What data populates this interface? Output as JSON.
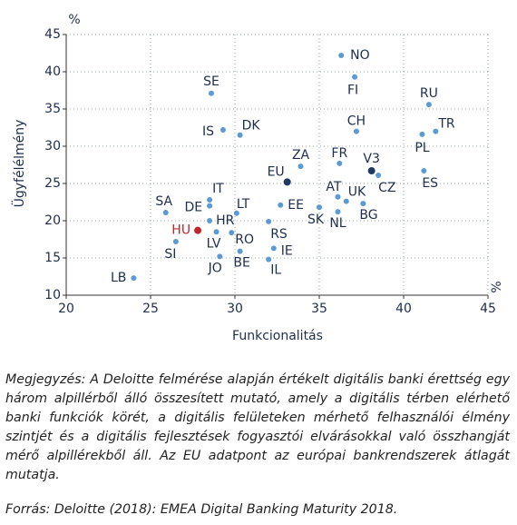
{
  "chart_data": {
    "type": "scatter",
    "y_label": "Ügyfélélmény",
    "x_label": "Funkcionalitás",
    "y_unit": "%",
    "x_unit": "%",
    "labels": [
      "NO",
      "FI",
      "SE",
      "RU",
      "IS",
      "DK",
      "CH",
      "TR",
      "PL",
      "ZA",
      "FR",
      "V3",
      "CZ",
      "ES",
      "EU",
      "AT",
      "UK",
      "SK",
      "NL",
      "BG",
      "EE",
      "SA",
      "IT",
      "DE",
      "LT",
      "HR",
      "HU",
      "RO",
      "LV",
      "SI",
      "RS",
      "IE",
      "BE",
      "JO",
      "IL",
      "LB"
    ],
    "x": [
      36.3,
      37.1,
      28.6,
      41.5,
      29.3,
      30.3,
      37.2,
      41.9,
      41.1,
      33.9,
      36.2,
      38.1,
      38.5,
      41.2,
      33.1,
      36.1,
      36.6,
      35.0,
      36.1,
      37.6,
      32.7,
      25.9,
      28.5,
      28.5,
      30.1,
      28.5,
      27.8,
      29.8,
      28.9,
      26.5,
      32.0,
      32.3,
      30.3,
      29.1,
      32.0,
      24.0
    ],
    "values": [
      42.2,
      39.3,
      37.1,
      35.6,
      32.2,
      31.5,
      32.0,
      32.0,
      31.6,
      27.3,
      27.7,
      26.7,
      26.1,
      26.7,
      25.2,
      23.2,
      22.6,
      21.8,
      21.2,
      22.3,
      22.1,
      21.1,
      22.8,
      22.0,
      21.0,
      20.0,
      18.7,
      18.4,
      18.5,
      17.2,
      19.9,
      16.3,
      15.9,
      15.2,
      14.8,
      12.3
    ],
    "colors": [
      "#5b9bd5",
      "#5b9bd5",
      "#5b9bd5",
      "#5b9bd5",
      "#5b9bd5",
      "#5b9bd5",
      "#5b9bd5",
      "#5b9bd5",
      "#5b9bd5",
      "#5b9bd5",
      "#5b9bd5",
      "#1f3864",
      "#5b9bd5",
      "#5b9bd5",
      "#1f3864",
      "#5b9bd5",
      "#5b9bd5",
      "#5b9bd5",
      "#5b9bd5",
      "#5b9bd5",
      "#5b9bd5",
      "#5b9bd5",
      "#5b9bd5",
      "#5b9bd5",
      "#5b9bd5",
      "#5b9bd5",
      "#c0272d",
      "#5b9bd5",
      "#5b9bd5",
      "#5b9bd5",
      "#5b9bd5",
      "#5b9bd5",
      "#5b9bd5",
      "#5b9bd5",
      "#5b9bd5",
      "#5b9bd5"
    ],
    "xlim": [
      20,
      45
    ],
    "xticks": [
      20,
      25,
      30,
      35,
      40,
      45
    ],
    "ylim": [
      10,
      45
    ],
    "yticks": [
      10,
      15,
      20,
      25,
      30,
      35,
      40,
      45
    ],
    "grid": true
  },
  "note": "Megjegyzés: A Deloitte felmérése alapján értékelt digitális banki érettség egy három alpillérből álló összesített mutató, amely a digitális térben elérhető banki funkciók körét, a digitális felületeken mérhető felhasználói élmény szintjét és a digitális fejlesztések fogyasztói elvárásokkal való összhangját mérő alpillérekből áll. Az EU adatpont az európai bankrendszerek átlagát mutatja.",
  "source": "Forrás: Deloitte (2018): EMEA Digital Banking Maturity 2018."
}
